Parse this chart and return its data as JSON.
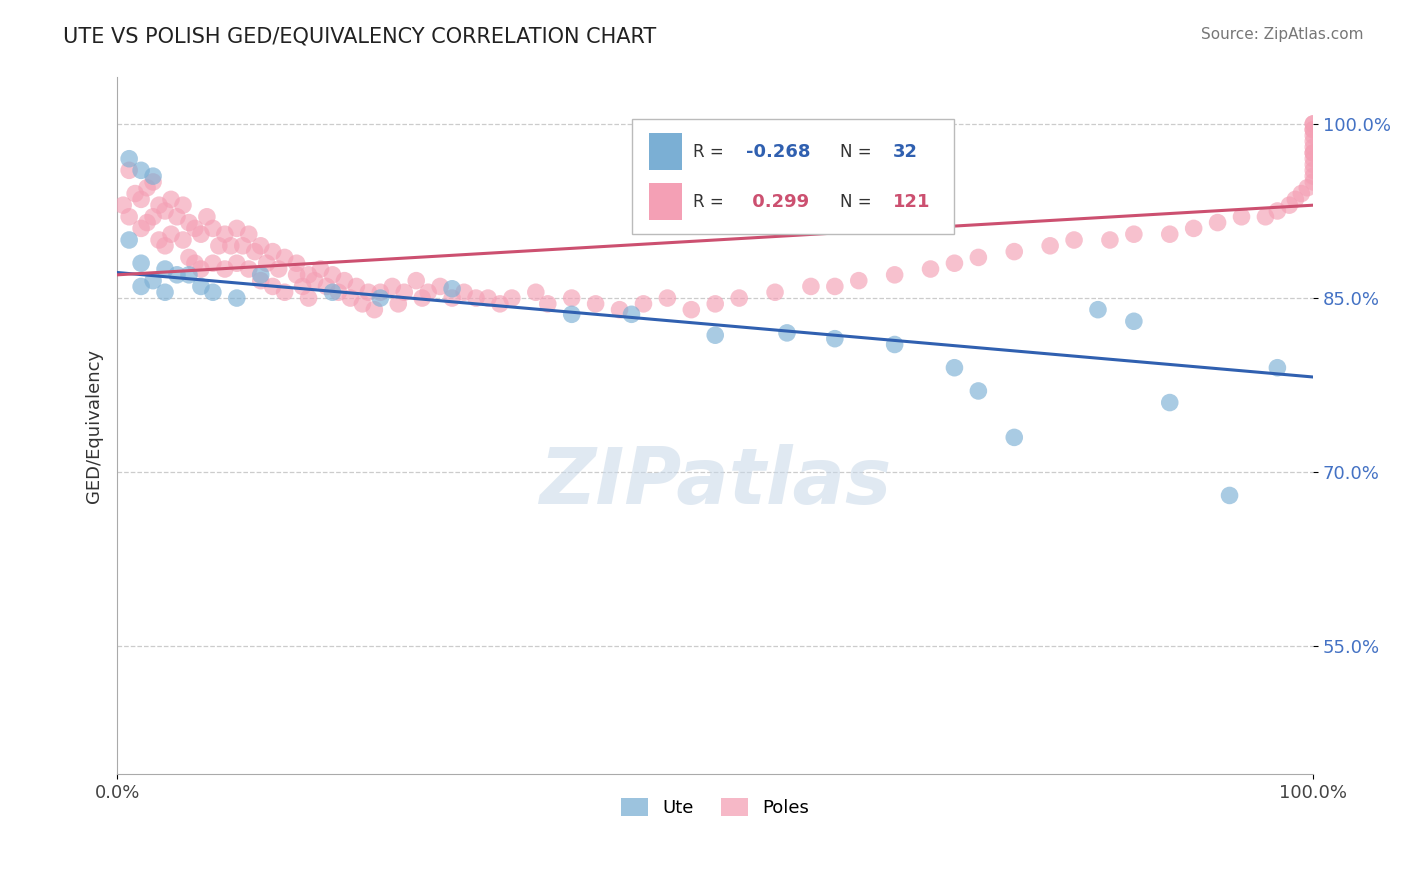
{
  "title": "UTE VS POLISH GED/EQUIVALENCY CORRELATION CHART",
  "source_text": "Source: ZipAtlas.com",
  "ylabel": "GED/Equivalency",
  "ute_R": -0.268,
  "ute_N": 32,
  "poles_R": 0.299,
  "poles_N": 121,
  "blue_color": "#7bafd4",
  "pink_color": "#f4a0b5",
  "blue_line_color": "#3060b0",
  "pink_line_color": "#cc5070",
  "xlim": [
    0.0,
    1.0
  ],
  "ylim": [
    0.44,
    1.04
  ],
  "yticks": [
    0.55,
    0.7,
    0.85,
    1.0
  ],
  "ytick_labels": [
    "55.0%",
    "70.0%",
    "85.0%",
    "100.0%"
  ],
  "xtick_labels": [
    "0.0%",
    "100.0%"
  ],
  "ute_x": [
    0.01,
    0.02,
    0.03,
    0.01,
    0.02,
    0.02,
    0.03,
    0.04,
    0.04,
    0.05,
    0.06,
    0.07,
    0.08,
    0.1,
    0.12,
    0.18,
    0.22,
    0.28,
    0.38,
    0.43,
    0.5,
    0.56,
    0.6,
    0.65,
    0.7,
    0.72,
    0.75,
    0.82,
    0.85,
    0.88,
    0.93,
    0.97
  ],
  "ute_y": [
    0.97,
    0.96,
    0.955,
    0.9,
    0.88,
    0.86,
    0.865,
    0.875,
    0.855,
    0.87,
    0.87,
    0.86,
    0.855,
    0.85,
    0.87,
    0.855,
    0.85,
    0.858,
    0.836,
    0.836,
    0.818,
    0.82,
    0.815,
    0.81,
    0.79,
    0.77,
    0.73,
    0.84,
    0.83,
    0.76,
    0.68,
    0.79
  ],
  "poles_x": [
    0.005,
    0.01,
    0.01,
    0.015,
    0.02,
    0.02,
    0.025,
    0.025,
    0.03,
    0.03,
    0.035,
    0.035,
    0.04,
    0.04,
    0.045,
    0.045,
    0.05,
    0.055,
    0.055,
    0.06,
    0.06,
    0.065,
    0.065,
    0.07,
    0.07,
    0.075,
    0.08,
    0.08,
    0.085,
    0.09,
    0.09,
    0.095,
    0.1,
    0.1,
    0.105,
    0.11,
    0.11,
    0.115,
    0.12,
    0.12,
    0.125,
    0.13,
    0.13,
    0.135,
    0.14,
    0.14,
    0.15,
    0.15,
    0.155,
    0.16,
    0.16,
    0.165,
    0.17,
    0.175,
    0.18,
    0.185,
    0.19,
    0.195,
    0.2,
    0.205,
    0.21,
    0.215,
    0.22,
    0.23,
    0.235,
    0.24,
    0.25,
    0.255,
    0.26,
    0.27,
    0.28,
    0.29,
    0.3,
    0.31,
    0.32,
    0.33,
    0.35,
    0.36,
    0.38,
    0.4,
    0.42,
    0.44,
    0.46,
    0.48,
    0.5,
    0.52,
    0.55,
    0.58,
    0.6,
    0.62,
    0.65,
    0.68,
    0.7,
    0.72,
    0.75,
    0.78,
    0.8,
    0.83,
    0.85,
    0.88,
    0.9,
    0.92,
    0.94,
    0.96,
    0.97,
    0.98,
    0.985,
    0.99,
    0.995,
    1.0,
    1.0,
    1.0,
    1.0,
    1.0,
    1.0,
    1.0,
    1.0,
    1.0,
    1.0,
    1.0,
    1.0,
    1.0,
    1.0
  ],
  "poles_y": [
    0.93,
    0.96,
    0.92,
    0.94,
    0.935,
    0.91,
    0.945,
    0.915,
    0.95,
    0.92,
    0.93,
    0.9,
    0.925,
    0.895,
    0.935,
    0.905,
    0.92,
    0.93,
    0.9,
    0.915,
    0.885,
    0.91,
    0.88,
    0.905,
    0.875,
    0.92,
    0.91,
    0.88,
    0.895,
    0.905,
    0.875,
    0.895,
    0.91,
    0.88,
    0.895,
    0.905,
    0.875,
    0.89,
    0.895,
    0.865,
    0.88,
    0.89,
    0.86,
    0.875,
    0.885,
    0.855,
    0.87,
    0.88,
    0.86,
    0.87,
    0.85,
    0.865,
    0.875,
    0.86,
    0.87,
    0.855,
    0.865,
    0.85,
    0.86,
    0.845,
    0.855,
    0.84,
    0.855,
    0.86,
    0.845,
    0.855,
    0.865,
    0.85,
    0.855,
    0.86,
    0.85,
    0.855,
    0.85,
    0.85,
    0.845,
    0.85,
    0.855,
    0.845,
    0.85,
    0.845,
    0.84,
    0.845,
    0.85,
    0.84,
    0.845,
    0.85,
    0.855,
    0.86,
    0.86,
    0.865,
    0.87,
    0.875,
    0.88,
    0.885,
    0.89,
    0.895,
    0.9,
    0.9,
    0.905,
    0.905,
    0.91,
    0.915,
    0.92,
    0.92,
    0.925,
    0.93,
    0.935,
    0.94,
    0.945,
    0.95,
    0.955,
    0.96,
    0.965,
    0.97,
    0.975,
    0.975,
    0.98,
    0.985,
    0.99,
    0.995,
    0.995,
    1.0,
    1.0
  ],
  "ute_line_x0": 0.0,
  "ute_line_y0": 0.872,
  "ute_line_x1": 1.0,
  "ute_line_y1": 0.782,
  "poles_line_x0": 0.0,
  "poles_line_y0": 0.87,
  "poles_line_x1": 1.0,
  "poles_line_y1": 0.93
}
